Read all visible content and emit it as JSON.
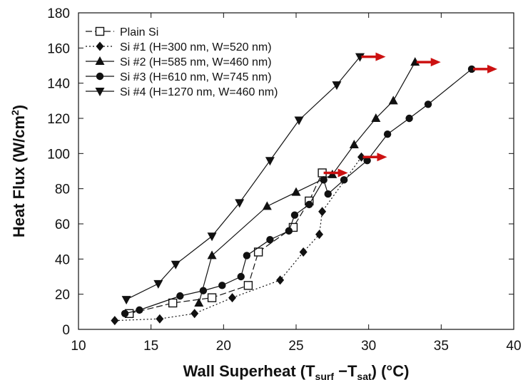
{
  "chart_data": {
    "type": "scatter",
    "xlabel": "Wall Superheat (T",
    "xlabel_sub1": "surf",
    "xlabel_mid": " −T",
    "xlabel_sub2": "sat",
    "xlabel_end": ") (°C)",
    "ylabel": "Heat Flux (W/cm",
    "ylabel_sup": "2",
    "ylabel_end": ")",
    "xlim": [
      10,
      40
    ],
    "ylim": [
      0,
      180
    ],
    "xticks": [
      "10",
      "15",
      "20",
      "25",
      "30",
      "35",
      "40"
    ],
    "yticks": [
      "0",
      "20",
      "40",
      "60",
      "80",
      "100",
      "120",
      "140",
      "160",
      "180"
    ],
    "grid": false,
    "legend_position": "top-left",
    "arrow_color": "#cc1111",
    "series": [
      {
        "name": "Plain Si",
        "marker": "square-open",
        "line": "long-dash",
        "x": [
          13.5,
          16.5,
          19.2,
          21.7,
          22.4,
          24.8,
          25.9,
          26.8
        ],
        "y": [
          9,
          15,
          18,
          25,
          44,
          58,
          73,
          89
        ],
        "chf_arrow": true
      },
      {
        "name": "Si #1 (H=300 nm, W=520 nm)",
        "marker": "diamond",
        "line": "dotted",
        "x": [
          12.5,
          15.6,
          18,
          20.6,
          23.9,
          25.5,
          26.6,
          26.8,
          29.5
        ],
        "y": [
          5,
          6,
          9,
          18,
          28,
          44,
          54,
          67,
          98
        ],
        "chf_arrow": true
      },
      {
        "name": "Si #2 (H=585 nm, W=460 nm)",
        "marker": "triangle-up",
        "line": "solid",
        "x": [
          18.3,
          19.2,
          23,
          25,
          27.5,
          29,
          30.5,
          31.7,
          33.2
        ],
        "y": [
          15,
          42,
          70,
          78,
          88,
          105,
          120,
          130,
          152
        ],
        "chf_arrow": true
      },
      {
        "name": "Si #3 (H=610 nm, W=745 nm)",
        "marker": "circle",
        "line": "solid",
        "x": [
          13.2,
          14.2,
          17,
          18.6,
          19.9,
          21.2,
          21.6,
          23.2,
          24.5,
          24.9,
          25.9,
          26.9,
          27.2,
          28.3,
          29.9,
          31.3,
          32.8,
          34.1,
          37.1
        ],
        "y": [
          9,
          11,
          19,
          22,
          25,
          30,
          42,
          51,
          56,
          65,
          71,
          85,
          77,
          85,
          96,
          111,
          120,
          128,
          148
        ],
        "chf_arrow": true
      },
      {
        "name": "Si #4 (H=1270 nm, W=460 nm)",
        "marker": "triangle-down",
        "line": "solid",
        "x": [
          13.3,
          15.5,
          16.7,
          19.2,
          21.1,
          23.2,
          25.2,
          27.8,
          29.4
        ],
        "y": [
          17,
          26,
          37,
          53,
          72,
          96,
          119,
          139,
          155
        ],
        "chf_arrow": true
      }
    ]
  }
}
